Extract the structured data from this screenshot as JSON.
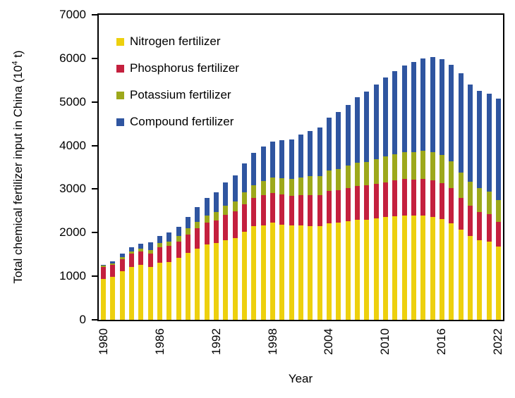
{
  "chart_data": {
    "type": "bar",
    "stacked": true,
    "title": "",
    "xlabel": "Year",
    "ylabel": "Total chemical fertilizer input in China (10⁴ t)",
    "ylabel_parts": {
      "prefix": "Total chemical fertilizer input in China (10",
      "superscript": "4",
      "suffix": " t)"
    },
    "ylim": [
      0,
      7000
    ],
    "yticks": [
      0,
      1000,
      2000,
      3000,
      4000,
      5000,
      6000,
      7000
    ],
    "xlim_years": [
      1980,
      2022
    ],
    "xtick_labels": [
      "1980",
      "1986",
      "1992",
      "1998",
      "2004",
      "2010",
      "2016",
      "2022"
    ],
    "xtick_years": [
      1980,
      1986,
      1992,
      1998,
      2004,
      2010,
      2016,
      2022
    ],
    "grid": false,
    "legend_position": "top-left-inside",
    "years": [
      1980,
      1981,
      1982,
      1983,
      1984,
      1985,
      1986,
      1987,
      1988,
      1989,
      1990,
      1991,
      1992,
      1993,
      1994,
      1995,
      1996,
      1997,
      1998,
      1999,
      2000,
      2001,
      2002,
      2003,
      2004,
      2005,
      2006,
      2007,
      2008,
      2009,
      2010,
      2011,
      2012,
      2013,
      2014,
      2015,
      2016,
      2017,
      2018,
      2019,
      2020,
      2021,
      2022
    ],
    "series": [
      {
        "name": "Nitrogen fertilizer",
        "color": "#EDD00E",
        "values": [
          934.2,
          988.6,
          1113.9,
          1215.5,
          1255.4,
          1204.9,
          1312.6,
          1326.8,
          1417.1,
          1536.3,
          1638.4,
          1726.1,
          1756.1,
          1835.1,
          1882.0,
          2021.9,
          2145.6,
          2172.2,
          2234.5,
          2180.9,
          2161.6,
          2164.0,
          2157.3,
          2149.8,
          2221.9,
          2229.3,
          2262.0,
          2297.2,
          2302.7,
          2329.9,
          2353.7,
          2381.4,
          2399.9,
          2394.2,
          2392.9,
          2361.6,
          2310.5,
          2221.8,
          2065.4,
          1930.2,
          1833.8,
          1794.4,
          1675.4
        ]
      },
      {
        "name": "Phosphorus fertilizer",
        "color": "#C4203E",
        "values": [
          273.3,
          265.9,
          283.5,
          299.4,
          311.4,
          310.9,
          359.0,
          371.9,
          382.3,
          418.0,
          462.4,
          499.6,
          515.7,
          575.1,
          600.7,
          632.4,
          658.4,
          689.0,
          683.5,
          697.4,
          690.5,
          705.8,
          712.2,
          713.9,
          736.0,
          743.8,
          769.3,
          773.0,
          780.1,
          797.7,
          805.6,
          819.2,
          828.5,
          830.5,
          845.3,
          843.1,
          829.7,
          796.9,
          728.9,
          681.8,
          648.0,
          625.3,
          575.5
        ]
      },
      {
        "name": "Potassium fertilizer",
        "color": "#9DA81B",
        "values": [
          34.6,
          39.0,
          43.9,
          56.4,
          62.7,
          80.4,
          84.5,
          99.3,
          125.1,
          141.6,
          147.9,
          173.9,
          196.0,
          212.3,
          234.8,
          268.5,
          289.0,
          322.0,
          346.4,
          365.5,
          376.5,
          396.9,
          422.3,
          438.4,
          467.3,
          489.5,
          513.0,
          534.9,
          546.5,
          564.3,
          586.4,
          605.1,
          618.8,
          624.3,
          641.9,
          642.3,
          636.9,
          621.3,
          590.3,
          560.0,
          542.3,
          524.5,
          502.7
        ]
      },
      {
        "name": "Compound fertilizer",
        "color": "#2F55A0",
        "values": [
          27.3,
          41.4,
          72.1,
          88.5,
          110.3,
          179.7,
          174.5,
          201.3,
          217.1,
          261.2,
          341.6,
          405.5,
          462.4,
          529.4,
          600.4,
          670.9,
          734.9,
          797.5,
          819.3,
          880.5,
          917.9,
          987.1,
          1047.6,
          1109.5,
          1211.4,
          1303.2,
          1383.3,
          1502.7,
          1609.8,
          1712.5,
          1815.9,
          1898.5,
          1991.6,
          2062.9,
          2115.8,
          2175.7,
          2207.1,
          2219.4,
          2268.8,
          2231.6,
          2226.6,
          2247.1,
          2325.6
        ]
      }
    ]
  }
}
